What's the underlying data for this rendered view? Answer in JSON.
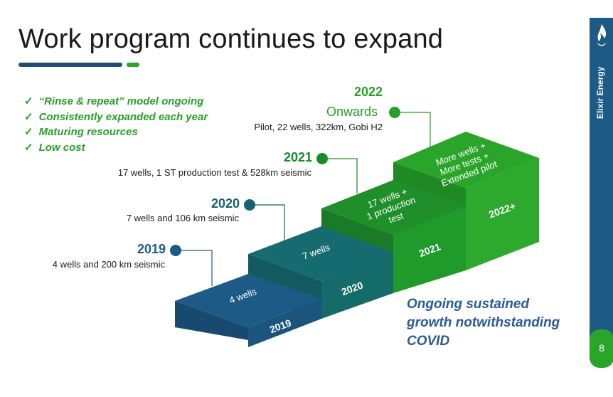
{
  "slide": {
    "title": "Work program continues to expand",
    "bullets": [
      "“Rinse & repeat” model ongoing",
      "Consistently expanded each year",
      "Maturing resources",
      "Low cost"
    ],
    "check_glyph": "✓",
    "milestones": [
      {
        "year": "2019",
        "desc": "4 wells and 200 km seismic",
        "color": "#1d5b86"
      },
      {
        "year": "2020",
        "desc": "7 wells and 106 km seismic",
        "color": "#155f6e"
      },
      {
        "year": "2021",
        "desc": "17 wells, 1 ST production test & 528km seismic",
        "color": "#1d8a2a"
      },
      {
        "year": "2022",
        "extra": "Onwards",
        "desc": "Pilot, 22 wells, 322km, Gobi H2",
        "color": "#27a02a"
      }
    ],
    "steps": [
      {
        "top_lines": [
          "4 wells"
        ],
        "front": "2019",
        "color": "#1d5b86"
      },
      {
        "top_lines": [
          "7 wells"
        ],
        "front": "2020",
        "color": "#156a6e"
      },
      {
        "top_lines": [
          "17 wells +",
          "1 production",
          "test"
        ],
        "front": "2021",
        "color": "#1e8a2c"
      },
      {
        "top_lines": [
          "More wells +",
          "More tests +",
          "Extended pilot"
        ],
        "front": "2022+",
        "color": "#2aa32a"
      }
    ],
    "tagline": [
      "Ongoing sustained",
      "growth notwithstanding",
      "COVID"
    ],
    "brand": "Elixir Energy",
    "brand_icon": "flame-logo-icon",
    "page_number": "8"
  }
}
